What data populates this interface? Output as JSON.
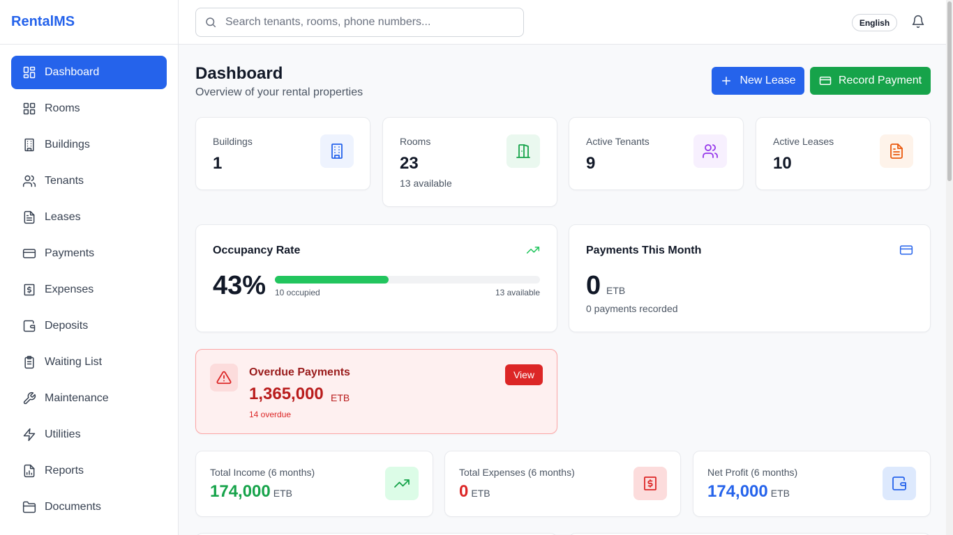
{
  "app": {
    "brand": "RentalMS"
  },
  "sidebar": {
    "items": [
      {
        "label": "Dashboard",
        "icon": "dashboard-icon",
        "active": true
      },
      {
        "label": "Rooms",
        "icon": "grid-icon"
      },
      {
        "label": "Buildings",
        "icon": "building-icon"
      },
      {
        "label": "Tenants",
        "icon": "users-icon"
      },
      {
        "label": "Leases",
        "icon": "document-icon"
      },
      {
        "label": "Payments",
        "icon": "credit-card-icon"
      },
      {
        "label": "Expenses",
        "icon": "receipt-icon"
      },
      {
        "label": "Deposits",
        "icon": "wallet-icon"
      },
      {
        "label": "Waiting List",
        "icon": "clipboard-icon"
      },
      {
        "label": "Maintenance",
        "icon": "wrench-icon"
      },
      {
        "label": "Utilities",
        "icon": "zap-icon"
      },
      {
        "label": "Reports",
        "icon": "report-icon"
      },
      {
        "label": "Documents",
        "icon": "folder-icon"
      }
    ]
  },
  "topbar": {
    "search_placeholder": "Search tenants, rooms, phone numbers...",
    "search_value": "",
    "language": "English"
  },
  "header": {
    "title": "Dashboard",
    "subtitle": "Overview of your rental properties",
    "new_lease_label": "New Lease",
    "record_payment_label": "Record Payment"
  },
  "stats": {
    "buildings": {
      "label": "Buildings",
      "value": "1"
    },
    "rooms": {
      "label": "Rooms",
      "value": "23",
      "sub": "13 available"
    },
    "tenants": {
      "label": "Active Tenants",
      "value": "9"
    },
    "leases": {
      "label": "Active Leases",
      "value": "10"
    }
  },
  "occupancy": {
    "title": "Occupancy Rate",
    "percent_label": "43%",
    "fill_fraction": 0.43,
    "occupied_label": "10 occupied",
    "available_label": "13 available"
  },
  "payments_month": {
    "title": "Payments This Month",
    "value": "0",
    "unit": "ETB",
    "sub": "0 payments recorded"
  },
  "overdue": {
    "title": "Overdue Payments",
    "value": "1,365,000",
    "unit": "ETB",
    "sub": "14 overdue",
    "view_label": "View"
  },
  "finance": {
    "income": {
      "label": "Total Income (6 months)",
      "value": "174,000",
      "unit": "ETB"
    },
    "expenses": {
      "label": "Total Expenses (6 months)",
      "value": "0",
      "unit": "ETB"
    },
    "profit": {
      "label": "Net Profit (6 months)",
      "value": "174,000",
      "unit": "ETB"
    }
  },
  "colors": {
    "primary": "#2563eb",
    "success": "#16a34a",
    "danger": "#dc2626",
    "purple": "#9333ea",
    "orange": "#ea580c"
  }
}
